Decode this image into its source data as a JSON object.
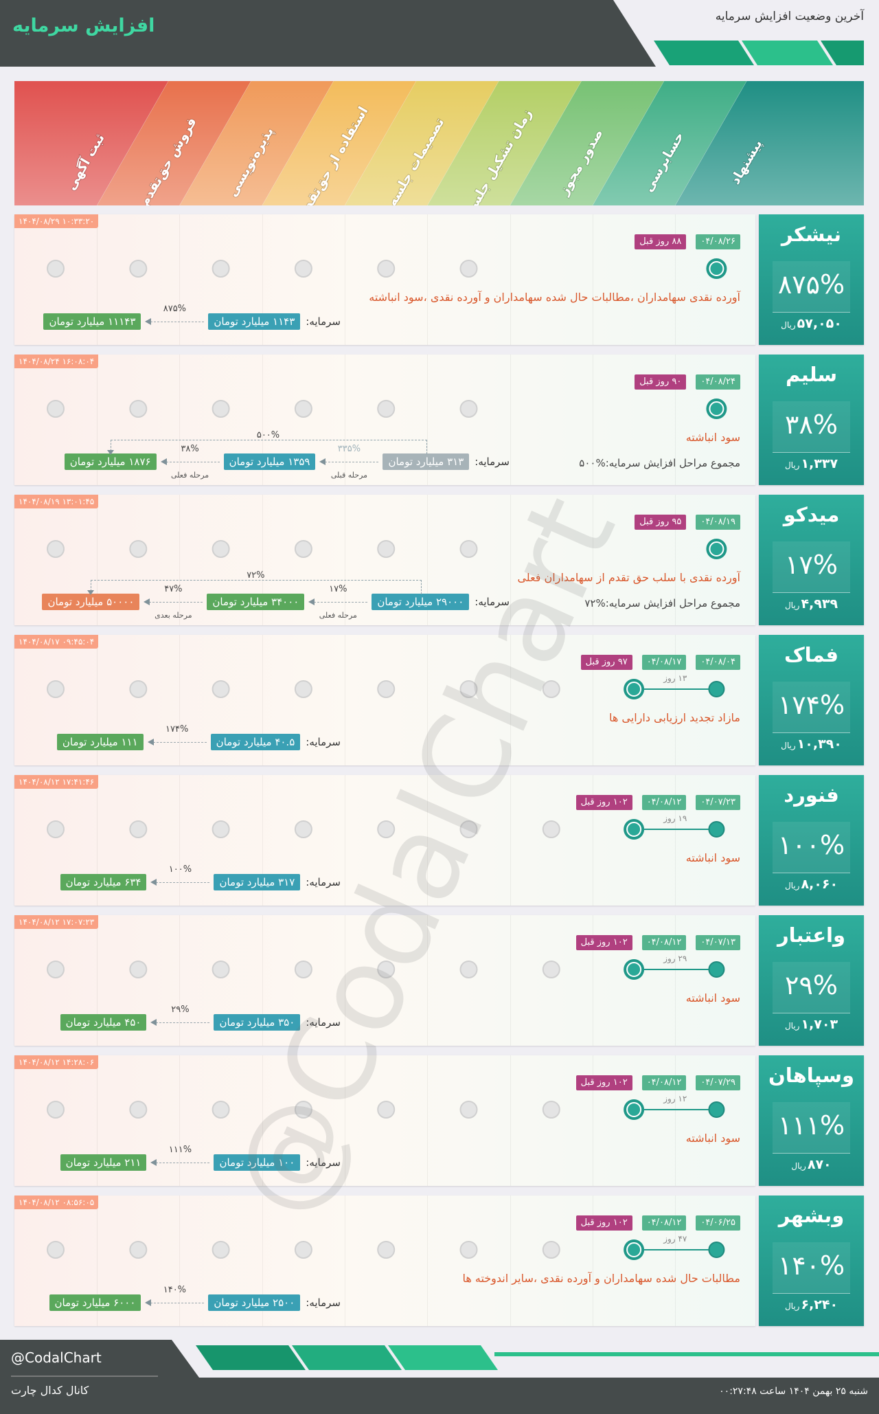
{
  "header": {
    "title": "افزایش سرمایه",
    "subtitle": "آخرین وضعیت افزایش سرمایه"
  },
  "stages": [
    "پیشنهاد",
    "حسابرسی",
    "صدور مجوز",
    "زمان تشکیل جلسه",
    "تصمیمات جلسه",
    "استفاده از حق‌تقدم",
    "پذیره‌نویسی",
    "فروش حق‌تقدم",
    "ثبت آگهی"
  ],
  "companies": [
    {
      "name": "نیشکر",
      "percent": "۸۷۵%",
      "price": "۵۷,۰۵۰",
      "price_unit": "ریال",
      "timestamp": "۱۴۰۴/۰۸/۲۹ ۱۰:۳۳:۲۰",
      "dates": [
        "۰۴/۰۸/۲۶"
      ],
      "days_ago": "۸۸ روز قبل",
      "source": "آورده نقدی سهامداران ،مطالبات حال شده سهامداران و آورده نقدی ،سود انباشته",
      "capital": {
        "label": "سرمایه:",
        "boxes": [
          {
            "text": "۱۱۴۳ میلیارد تومان",
            "color": "#3aa0b4"
          },
          {
            "text": "۱۱۱۴۳ میلیارد تومان",
            "color": "#5aa85c"
          }
        ],
        "steps": [
          {
            "pct": "۸۷۵%"
          }
        ]
      }
    },
    {
      "name": "سلیم",
      "percent": "۳۸%",
      "price": "۱,۳۳۷",
      "price_unit": "ریال",
      "timestamp": "۱۴۰۴/۰۸/۲۴ ۱۶:۰۸:۰۴",
      "dates": [
        "۰۴/۰۸/۲۴"
      ],
      "days_ago": "۹۰ روز قبل",
      "source": "سود انباشته",
      "total": "مجموع مراحل افزایش سرمایه:%۵۰۰",
      "capital": {
        "label": "سرمایه:",
        "boxes": [
          {
            "text": "۳۱۳ میلیارد تومان",
            "color": "#a7b3b8"
          },
          {
            "text": "۱۳۵۹ میلیارد تومان",
            "color": "#3aa0b4"
          },
          {
            "text": "۱۸۷۶ میلیارد تومان",
            "color": "#5aa85c"
          }
        ],
        "steps": [
          {
            "pct": "۳۳۵%",
            "note": "مرحله قبلی",
            "muted": true
          },
          {
            "pct": "۳۸%",
            "note": "مرحله فعلی"
          }
        ],
        "overall": "۵۰۰%"
      }
    },
    {
      "name": "میدکو",
      "percent": "۱۷%",
      "price": "۴,۹۳۹",
      "price_unit": "ریال",
      "timestamp": "۱۴۰۴/۰۸/۱۹ ۱۳:۰۱:۴۵",
      "dates": [
        "۰۴/۰۸/۱۹"
      ],
      "days_ago": "۹۵ روز قبل",
      "source": "آورده نقدی با سلب حق تقدم از سهامداران فعلی",
      "total": "مجموع مراحل افزایش سرمایه:%۷۲",
      "capital": {
        "label": "سرمایه:",
        "boxes": [
          {
            "text": "۲۹۰۰۰ میلیارد تومان",
            "color": "#3aa0b4"
          },
          {
            "text": "۳۴۰۰۰ میلیارد تومان",
            "color": "#5aa85c"
          },
          {
            "text": "۵۰۰۰۰ میلیارد تومان",
            "color": "#e8845a"
          }
        ],
        "steps": [
          {
            "pct": "۱۷%",
            "note": "مرحله فعلی"
          },
          {
            "pct": "۴۷%",
            "note": "مرحله بعدی"
          }
        ],
        "overall": "۷۲%"
      }
    },
    {
      "name": "فماک",
      "percent": "۱۷۴%",
      "price": "۱۰,۳۹۰",
      "price_unit": "ریال",
      "timestamp": "۱۴۰۴/۰۸/۱۷ ۰۹:۴۵:۰۴",
      "dates": [
        "۰۴/۰۸/۰۴",
        "۰۴/۰۸/۱۷"
      ],
      "gap": "۱۳ روز",
      "days_ago": "۹۷ روز قبل",
      "source": "مازاد تجدید ارزیابی دارایی ها",
      "capital": {
        "label": "سرمایه:",
        "boxes": [
          {
            "text": "۴۰.۵ میلیارد تومان",
            "color": "#3aa0b4"
          },
          {
            "text": "۱۱۱ میلیارد تومان",
            "color": "#5aa85c"
          }
        ],
        "steps": [
          {
            "pct": "۱۷۴%"
          }
        ]
      }
    },
    {
      "name": "فنورد",
      "percent": "۱۰۰%",
      "price": "۸,۰۶۰",
      "price_unit": "ریال",
      "timestamp": "۱۴۰۴/۰۸/۱۲ ۱۷:۴۱:۴۶",
      "dates": [
        "۰۴/۰۷/۲۳",
        "۰۴/۰۸/۱۲"
      ],
      "gap": "۱۹ روز",
      "days_ago": "۱۰۲ روز قبل",
      "source": "سود انباشته",
      "capital": {
        "label": "سرمایه:",
        "boxes": [
          {
            "text": "۳۱۷ میلیارد تومان",
            "color": "#3aa0b4"
          },
          {
            "text": "۶۳۴ میلیارد تومان",
            "color": "#5aa85c"
          }
        ],
        "steps": [
          {
            "pct": "۱۰۰%"
          }
        ]
      }
    },
    {
      "name": "واعتبار",
      "percent": "۲۹%",
      "price": "۱,۷۰۳",
      "price_unit": "ریال",
      "timestamp": "۱۴۰۴/۰۸/۱۲ ۱۷:۰۷:۲۳",
      "dates": [
        "۰۴/۰۷/۱۳",
        "۰۴/۰۸/۱۲"
      ],
      "gap": "۲۹ روز",
      "days_ago": "۱۰۲ روز قبل",
      "source": "سود انباشته",
      "capital": {
        "label": "سرمایه:",
        "boxes": [
          {
            "text": "۳۵۰ میلیارد تومان",
            "color": "#3aa0b4"
          },
          {
            "text": "۴۵۰ میلیارد تومان",
            "color": "#5aa85c"
          }
        ],
        "steps": [
          {
            "pct": "۲۹%"
          }
        ]
      }
    },
    {
      "name": "وسپاهان",
      "percent": "۱۱۱%",
      "price": "۸۷۰",
      "price_unit": "ریال",
      "timestamp": "۱۴۰۴/۰۸/۱۲ ۱۴:۲۸:۰۶",
      "dates": [
        "۰۴/۰۷/۲۹",
        "۰۴/۰۸/۱۲"
      ],
      "gap": "۱۲ روز",
      "days_ago": "۱۰۲ روز قبل",
      "source": "سود انباشته",
      "capital": {
        "label": "سرمایه:",
        "boxes": [
          {
            "text": "۱۰۰ میلیارد تومان",
            "color": "#3aa0b4"
          },
          {
            "text": "۲۱۱ میلیارد تومان",
            "color": "#5aa85c"
          }
        ],
        "steps": [
          {
            "pct": "۱۱۱%"
          }
        ]
      }
    },
    {
      "name": "وبشهر",
      "percent": "۱۴۰%",
      "price": "۶,۲۴۰",
      "price_unit": "ریال",
      "timestamp": "۱۴۰۴/۰۸/۱۲ ۰۸:۵۶:۰۵",
      "dates": [
        "۰۴/۰۶/۲۵",
        "۰۴/۰۸/۱۲"
      ],
      "gap": "۴۷ روز",
      "days_ago": "۱۰۲ روز قبل",
      "source": "مطالبات حال شده سهامداران و آورده نقدی ،سایر اندوخته ها",
      "capital": {
        "label": "سرمایه:",
        "boxes": [
          {
            "text": "۲۵۰۰ میلیارد تومان",
            "color": "#3aa0b4"
          },
          {
            "text": "۶۰۰۰ میلیارد تومان",
            "color": "#5aa85c"
          }
        ],
        "steps": [
          {
            "pct": "۱۴۰%"
          }
        ]
      }
    }
  ],
  "watermark": "@CodalChart",
  "footer": {
    "handle": "@CodalChart",
    "channel": "کانال کدال چارت",
    "datetime": "شنبه ۲۵ بهمن ۱۴۰۴ ساعت ۰۰:۲۷:۴۸"
  }
}
